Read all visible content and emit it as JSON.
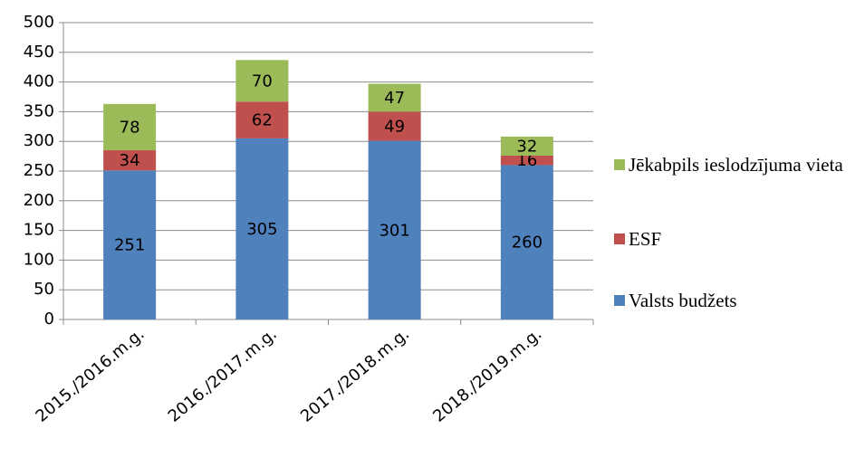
{
  "chart_data": {
    "type": "bar",
    "stacked": true,
    "categories": [
      "2015./2016.m.g.",
      "2016./2017.m.g.",
      "2017./2018.m.g.",
      "2018./2019.m.g."
    ],
    "series": [
      {
        "name": "Valsts budžets",
        "color": "#4f81bd",
        "values": [
          251,
          305,
          301,
          260
        ]
      },
      {
        "name": "ESF",
        "color": "#c0504d",
        "values": [
          34,
          62,
          49,
          16
        ]
      },
      {
        "name": "Jēkabpils ieslodzījuma vieta",
        "color": "#9bbb59",
        "values": [
          78,
          70,
          47,
          32
        ]
      }
    ],
    "ylim": [
      0,
      500
    ],
    "yticks": [
      0,
      50,
      100,
      150,
      200,
      250,
      300,
      350,
      400,
      450,
      500
    ],
    "grid": true,
    "legend": "right"
  }
}
